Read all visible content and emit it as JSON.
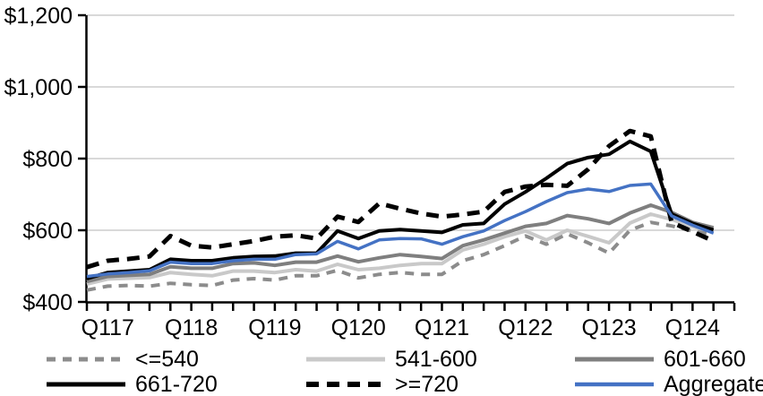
{
  "chart_data": {
    "type": "line",
    "title": "",
    "x_axis": {
      "categories": [
        "Q117",
        "Q217",
        "Q317",
        "Q417",
        "Q118",
        "Q218",
        "Q318",
        "Q418",
        "Q119",
        "Q219",
        "Q319",
        "Q419",
        "Q120",
        "Q220",
        "Q320",
        "Q420",
        "Q121",
        "Q221",
        "Q321",
        "Q421",
        "Q122",
        "Q222",
        "Q322",
        "Q422",
        "Q123",
        "Q223",
        "Q323",
        "Q423",
        "Q124",
        "Q224",
        "Q324"
      ],
      "tick_labels": [
        {
          "label": "Q117",
          "index": 0
        },
        {
          "label": "Q118",
          "index": 4
        },
        {
          "label": "Q119",
          "index": 8
        },
        {
          "label": "Q120",
          "index": 12
        },
        {
          "label": "Q121",
          "index": 16
        },
        {
          "label": "Q122",
          "index": 20
        },
        {
          "label": "Q123",
          "index": 24
        },
        {
          "label": "Q124",
          "index": 28
        }
      ],
      "minor_tick_count": 32
    },
    "y_axis": {
      "min": 400,
      "max": 1200,
      "step": 200,
      "tick_labels": [
        {
          "label": "$400",
          "value": 400
        },
        {
          "label": "$600",
          "value": 600
        },
        {
          "label": "$800",
          "value": 800
        },
        {
          "label": "$1,000",
          "value": 1000
        },
        {
          "label": "$1,200",
          "value": 1200
        }
      ],
      "grid": true
    },
    "series": [
      {
        "name": "<=540",
        "color": "#8C8C8C",
        "dash": "10 8",
        "width": 4,
        "values": [
          433,
          444,
          446,
          444,
          452,
          448,
          446,
          461,
          465,
          461,
          473,
          473,
          488,
          467,
          477,
          482,
          477,
          477,
          515,
          532,
          557,
          584,
          561,
          590,
          565,
          536,
          600,
          622,
          612,
          598,
          588
        ]
      },
      {
        "name": "541-600",
        "color": "#C9C9C9",
        "dash": null,
        "width": 4,
        "values": [
          450,
          464,
          466,
          468,
          482,
          477,
          473,
          486,
          486,
          482,
          490,
          486,
          505,
          490,
          494,
          502,
          507,
          507,
          545,
          561,
          582,
          598,
          573,
          600,
          583,
          565,
          620,
          645,
          630,
          610,
          596
        ]
      },
      {
        "name": "601-660",
        "color": "#7F7F7F",
        "dash": null,
        "width": 4,
        "values": [
          457,
          471,
          474,
          477,
          498,
          494,
          494,
          507,
          509,
          502,
          511,
          511,
          528,
          512,
          523,
          532,
          527,
          521,
          557,
          573,
          592,
          611,
          619,
          641,
          632,
          619,
          648,
          670,
          650,
          622,
          607
        ]
      },
      {
        "name": "661-720",
        "color": "#000000",
        "dash": null,
        "width": 4,
        "values": [
          465,
          482,
          486,
          490,
          519,
          515,
          515,
          523,
          527,
          528,
          536,
          536,
          598,
          577,
          598,
          602,
          598,
          594,
          615,
          619,
          673,
          707,
          745,
          786,
          803,
          812,
          848,
          820,
          645,
          619,
          601
        ]
      },
      {
        "name": ">=720",
        "color": "#000000",
        "dash": "14 9",
        "width": 5,
        "values": [
          497,
          515,
          520,
          527,
          584,
          557,
          552,
          561,
          570,
          582,
          586,
          577,
          638,
          623,
          675,
          660,
          647,
          638,
          644,
          652,
          707,
          722,
          727,
          724,
          770,
          835,
          877,
          862,
          622,
          596,
          570
        ]
      },
      {
        "name": "Aggregate",
        "color": "#4472C4",
        "dash": null,
        "width": 3.5,
        "values": [
          471,
          478,
          482,
          487,
          511,
          507,
          507,
          515,
          519,
          519,
          532,
          534,
          569,
          548,
          573,
          577,
          576,
          561,
          582,
          598,
          627,
          652,
          680,
          705,
          715,
          708,
          725,
          729,
          640,
          614,
          592
        ]
      }
    ],
    "legend": {
      "position": "bottom",
      "rows": [
        [
          0,
          1,
          2
        ],
        [
          3,
          4,
          5
        ]
      ]
    },
    "colors": {
      "grid": "#D9D9D9",
      "axis": "#000000",
      "background": "#FFFFFF"
    }
  }
}
